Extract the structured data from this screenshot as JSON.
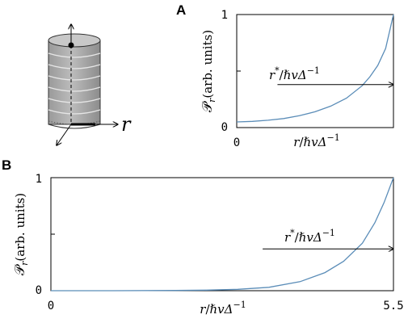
{
  "panels": {
    "a": "A",
    "b": "B"
  },
  "schematic": {
    "axis_label": "r"
  },
  "chart_data": [
    {
      "panel": "A",
      "type": "line",
      "xlim": [
        0,
        1
      ],
      "ylim": [
        0,
        1
      ],
      "xticks": [
        "0"
      ],
      "yticks": [
        "0",
        "1"
      ],
      "xlabel": {
        "var": "r",
        "slash": "/",
        "rest": "ℏvΔ",
        "sup": "−1"
      },
      "ylabel": {
        "sym": "𝒫",
        "sub": "r",
        "rest": "(arb. units)"
      },
      "annotation": {
        "var": "r",
        "sup_star": "*",
        "slash": "/",
        "rest": "ℏvΔ",
        "sup": "−1",
        "arrow_y": 0.38,
        "arrow_from_x": 0.26,
        "arrow_to_x": 1
      },
      "series": [
        {
          "color": "#5b8db8",
          "x": [
            0,
            0.1,
            0.2,
            0.3,
            0.4,
            0.5,
            0.6,
            0.7,
            0.8,
            0.85,
            0.9,
            0.95,
            1.0
          ],
          "y": [
            0.05,
            0.055,
            0.065,
            0.08,
            0.105,
            0.14,
            0.19,
            0.26,
            0.37,
            0.45,
            0.55,
            0.7,
            1.0
          ]
        }
      ]
    },
    {
      "panel": "B",
      "type": "line",
      "xlim": [
        0,
        5.5
      ],
      "ylim": [
        0,
        1
      ],
      "xticks": [
        "0",
        "5.5"
      ],
      "yticks": [
        "0",
        "1"
      ],
      "xlabel": {
        "var": "r",
        "slash": "/",
        "rest": "ℏvΔ",
        "sup": "−1"
      },
      "ylabel": {
        "sym": "𝒫",
        "sub": "r",
        "rest": "(arb. units)"
      },
      "annotation": {
        "var": "r",
        "sup_star": "*",
        "slash": "/",
        "rest": "ℏvΔ",
        "sup": "−1",
        "arrow_y": 0.37,
        "arrow_from_x": 3.4,
        "arrow_to_x": 5.5
      },
      "series": [
        {
          "color": "#5b8db8",
          "x": [
            0,
            1,
            2,
            2.5,
            3,
            3.5,
            4,
            4.4,
            4.7,
            5.0,
            5.2,
            5.35,
            5.5
          ],
          "y": [
            0,
            0.0003,
            0.002,
            0.005,
            0.012,
            0.03,
            0.08,
            0.16,
            0.26,
            0.42,
            0.6,
            0.78,
            1.0
          ]
        }
      ]
    }
  ]
}
